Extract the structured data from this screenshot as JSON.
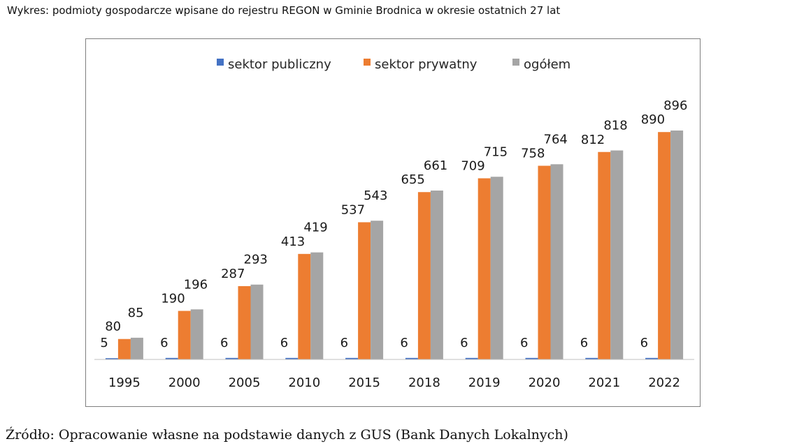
{
  "caption": "Wykres: podmioty  gospodarcze wpisane do rejestru REGON  w Gminie Brodnica w okresie ostatnich 27 lat",
  "source": "Źródło: Opracowanie własne na podstawie danych z GUS (Bank Danych Lokalnych)",
  "chart_data": {
    "type": "bar",
    "title": "",
    "xlabel": "",
    "ylabel": "",
    "categories": [
      "1995",
      "2000",
      "2005",
      "2010",
      "2015",
      "2018",
      "2019",
      "2020",
      "2021",
      "2022"
    ],
    "series": [
      {
        "name": "sektor publiczny",
        "color": "#4472C4",
        "values": [
          5,
          6,
          6,
          6,
          6,
          6,
          6,
          6,
          6,
          6
        ]
      },
      {
        "name": "sektor prywatny",
        "color": "#ED7D31",
        "values": [
          80,
          190,
          287,
          413,
          537,
          655,
          709,
          758,
          812,
          890
        ]
      },
      {
        "name": "ogółem",
        "color": "#A5A5A5",
        "values": [
          85,
          196,
          293,
          419,
          543,
          661,
          715,
          764,
          818,
          896
        ]
      }
    ],
    "ylim": [
      0,
      896
    ],
    "grid": false,
    "legend_position": "top-center",
    "data_labels": true
  }
}
